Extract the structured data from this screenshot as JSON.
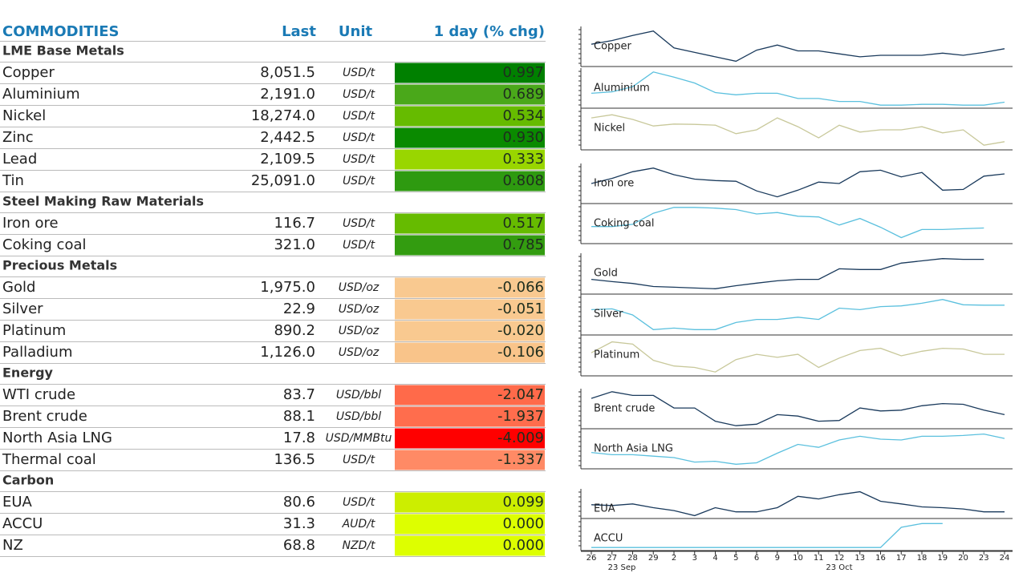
{
  "header": {
    "title": "COMMODITIES",
    "last": "Last",
    "unit": "Unit",
    "change": "1 day (% chg)"
  },
  "sections": [
    {
      "name": "LME Base Metals",
      "rows": [
        {
          "name": "Copper",
          "last": "8,051.5",
          "unit": "USD/t",
          "change": "0.997",
          "color": "#008000"
        },
        {
          "name": "Aluminium",
          "last": "2,191.0",
          "unit": "USD/t",
          "change": "0.689",
          "color": "#4aa81a"
        },
        {
          "name": "Nickel",
          "last": "18,274.0",
          "unit": "USD/t",
          "change": "0.534",
          "color": "#66bb00"
        },
        {
          "name": "Zinc",
          "last": "2,442.5",
          "unit": "USD/t",
          "change": "0.930",
          "color": "#0a8a00"
        },
        {
          "name": "Lead",
          "last": "2,109.5",
          "unit": "USD/t",
          "change": "0.333",
          "color": "#99d600"
        },
        {
          "name": "Tin",
          "last": "25,091.0",
          "unit": "USD/t",
          "change": "0.808",
          "color": "#2e9a10"
        }
      ]
    },
    {
      "name": "Steel Making Raw Materials",
      "rows": [
        {
          "name": "Iron ore",
          "last": "116.7",
          "unit": "USD/t",
          "change": "0.517",
          "color": "#66bb00"
        },
        {
          "name": "Coking coal",
          "last": "321.0",
          "unit": "USD/t",
          "change": "0.785",
          "color": "#339c10"
        }
      ]
    },
    {
      "name": "Precious Metals",
      "rows": [
        {
          "name": "Gold",
          "last": "1,975.0",
          "unit": "USD/oz",
          "change": "-0.066",
          "color": "#f9c990"
        },
        {
          "name": "Silver",
          "last": "22.9",
          "unit": "USD/oz",
          "change": "-0.051",
          "color": "#f9c990"
        },
        {
          "name": "Platinum",
          "last": "890.2",
          "unit": "USD/oz",
          "change": "-0.020",
          "color": "#f9c990"
        },
        {
          "name": "Palladium",
          "last": "1,126.0",
          "unit": "USD/oz",
          "change": "-0.106",
          "color": "#f9c48a"
        }
      ]
    },
    {
      "name": "Energy",
      "rows": [
        {
          "name": "WTI crude",
          "last": "83.7",
          "unit": "USD/bbl",
          "change": "-2.047",
          "color": "#ff6a4a"
        },
        {
          "name": "Brent crude",
          "last": "88.1",
          "unit": "USD/bbl",
          "change": "-1.937",
          "color": "#ff6d4d"
        },
        {
          "name": "North Asia LNG",
          "last": "17.8",
          "unit": "USD/MMBtu",
          "change": "-4.009",
          "color": "#ff0000"
        },
        {
          "name": "Thermal coal",
          "last": "136.5",
          "unit": "USD/t",
          "change": "-1.337",
          "color": "#ff8a65"
        }
      ]
    },
    {
      "name": "Carbon",
      "rows": [
        {
          "name": "EUA",
          "last": "80.6",
          "unit": "USD/t",
          "change": "0.099",
          "color": "#ccee00"
        },
        {
          "name": "ACCU",
          "last": "31.3",
          "unit": "AUD/t",
          "change": "0.000",
          "color": "#ddff00"
        },
        {
          "name": "NZ",
          "last": "68.8",
          "unit": "NZD/t",
          "change": "0.000",
          "color": "#ddff00"
        }
      ]
    }
  ],
  "sparklines": {
    "dates": [
      "26",
      "27",
      "28",
      "29",
      "2",
      "3",
      "4",
      "5",
      "6",
      "9",
      "10",
      "11",
      "12",
      "13",
      "16",
      "17",
      "18",
      "19",
      "20",
      "23",
      "24"
    ],
    "months": [
      "23 Sep",
      "23 Oct"
    ],
    "panels": [
      {
        "name": "Copper",
        "color": "#1a3a5c",
        "values": [
          56,
          66,
          80,
          92,
          46,
          34,
          22,
          10,
          40,
          54,
          38,
          38,
          30,
          22,
          26,
          26,
          26,
          32,
          26,
          34,
          44
        ]
      },
      {
        "name": "Aluminium",
        "color": "#5bc0de",
        "values": [
          36,
          40,
          54,
          94,
          80,
          64,
          38,
          32,
          36,
          36,
          22,
          22,
          14,
          14,
          4,
          4,
          6,
          6,
          4,
          4,
          12
        ]
      },
      {
        "name": "Nickel",
        "color": "#c8c89a",
        "values": [
          79,
          87,
          75,
          58,
          63,
          62,
          60,
          38,
          48,
          79,
          56,
          27,
          60,
          42,
          48,
          48,
          56,
          40,
          48,
          8,
          17
        ]
      },
      {
        "name": "Iron ore",
        "color": "#1a3a5c",
        "values": [
          50,
          64,
          82,
          92,
          74,
          62,
          58,
          56,
          30,
          14,
          32,
          54,
          50,
          82,
          86,
          68,
          80,
          32,
          34,
          70,
          76
        ]
      },
      {
        "name": "Coking coal",
        "color": "#5bc0de",
        "values": [
          42,
          42,
          48,
          78,
          94,
          94,
          92,
          88,
          76,
          80,
          70,
          68,
          46,
          64,
          40,
          12,
          34,
          34,
          36,
          38,
          null
        ]
      },
      {
        "name": "Gold",
        "color": "#1a3a5c",
        "values": [
          35,
          29,
          24,
          16,
          14,
          12,
          10,
          18,
          25,
          31,
          35,
          35,
          63,
          61,
          61,
          78,
          84,
          90,
          88,
          88,
          null
        ]
      },
      {
        "name": "Silver",
        "color": "#5bc0de",
        "values": [
          63,
          65,
          49,
          10,
          14,
          10,
          10,
          29,
          37,
          37,
          43,
          37,
          67,
          63,
          71,
          73,
          80,
          90,
          76,
          75,
          75
        ]
      },
      {
        "name": "Platinum",
        "color": "#c8c89a",
        "values": [
          57,
          86,
          80,
          37,
          22,
          18,
          6,
          39,
          53,
          45,
          53,
          18,
          43,
          63,
          69,
          49,
          61,
          69,
          67,
          53,
          53
        ]
      },
      {
        "name": "Brent crude",
        "color": "#1a3a5c",
        "values": [
          78,
          96,
          86,
          86,
          52,
          52,
          16,
          4,
          8,
          34,
          30,
          16,
          18,
          52,
          44,
          46,
          58,
          64,
          62,
          46,
          34
        ]
      },
      {
        "name": "North Asia LNG",
        "color": "#5bc0de",
        "values": [
          40,
          34,
          34,
          30,
          26,
          14,
          16,
          8,
          12,
          38,
          62,
          54,
          74,
          84,
          76,
          74,
          84,
          84,
          86,
          90,
          78
        ]
      },
      {
        "name": "EUA",
        "color": "#1a3a5c",
        "values": [
          46,
          43,
          49,
          35,
          24,
          5,
          35,
          19,
          19,
          35,
          78,
          68,
          84,
          95,
          59,
          49,
          38,
          35,
          30,
          19,
          19
        ]
      },
      {
        "name": "ACCU",
        "color": "#5bc0de",
        "values": [
          5,
          5,
          5,
          5,
          5,
          5,
          5,
          5,
          5,
          5,
          5,
          5,
          5,
          5,
          5,
          75,
          88,
          88,
          null,
          null,
          null
        ]
      }
    ]
  }
}
